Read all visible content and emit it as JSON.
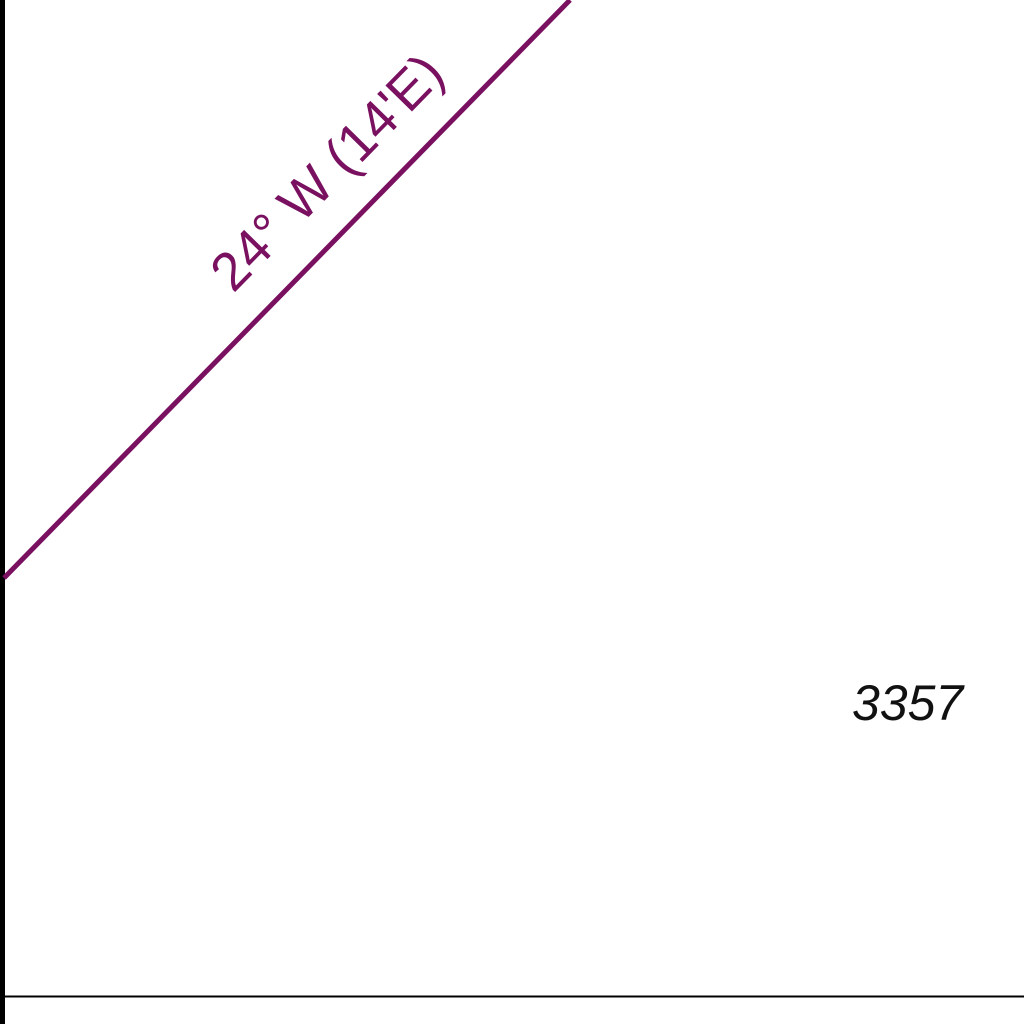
{
  "map": {
    "isogonic_line": {
      "label": "24° W (14'E)",
      "color": "#7a1060"
    },
    "elevation_figure": {
      "value": "3357",
      "color": "#111111"
    },
    "border_color": "#000000"
  }
}
